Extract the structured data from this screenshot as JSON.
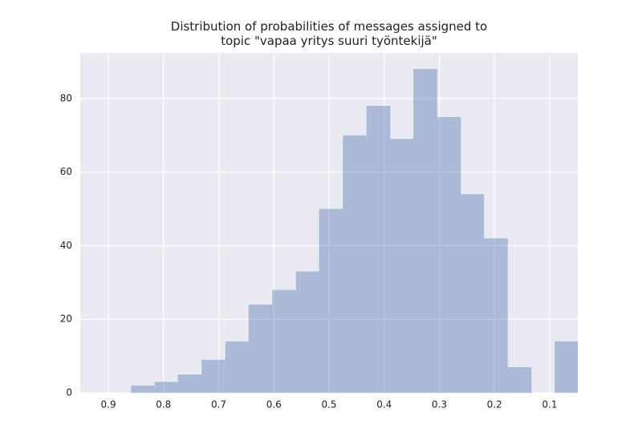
{
  "chart_data": {
    "type": "histogram",
    "title": "Distribution of probabilities of messages assigned to\ntopic \"vapaa yritys suuri työntekijä\"",
    "bins": [
      0.048,
      0.091,
      0.133,
      0.176,
      0.219,
      0.261,
      0.304,
      0.347,
      0.389,
      0.432,
      0.475,
      0.518,
      0.56,
      0.603,
      0.646,
      0.688,
      0.731,
      0.774,
      0.816,
      0.859
    ],
    "values": [
      14,
      0,
      7,
      42,
      54,
      75,
      88,
      69,
      78,
      70,
      50,
      33,
      28,
      24,
      14,
      9,
      5,
      3,
      2
    ],
    "color": "#4c72b0",
    "opacity": 0.4,
    "xlim": [
      0.951,
      0.049
    ],
    "xticks": [
      0.9,
      0.8,
      0.7,
      0.6,
      0.5,
      0.4,
      0.3,
      0.2,
      0.1
    ],
    "ylim": [
      0,
      92.4
    ],
    "yticks": [
      0,
      20,
      40,
      60,
      80
    ],
    "grid": true
  }
}
